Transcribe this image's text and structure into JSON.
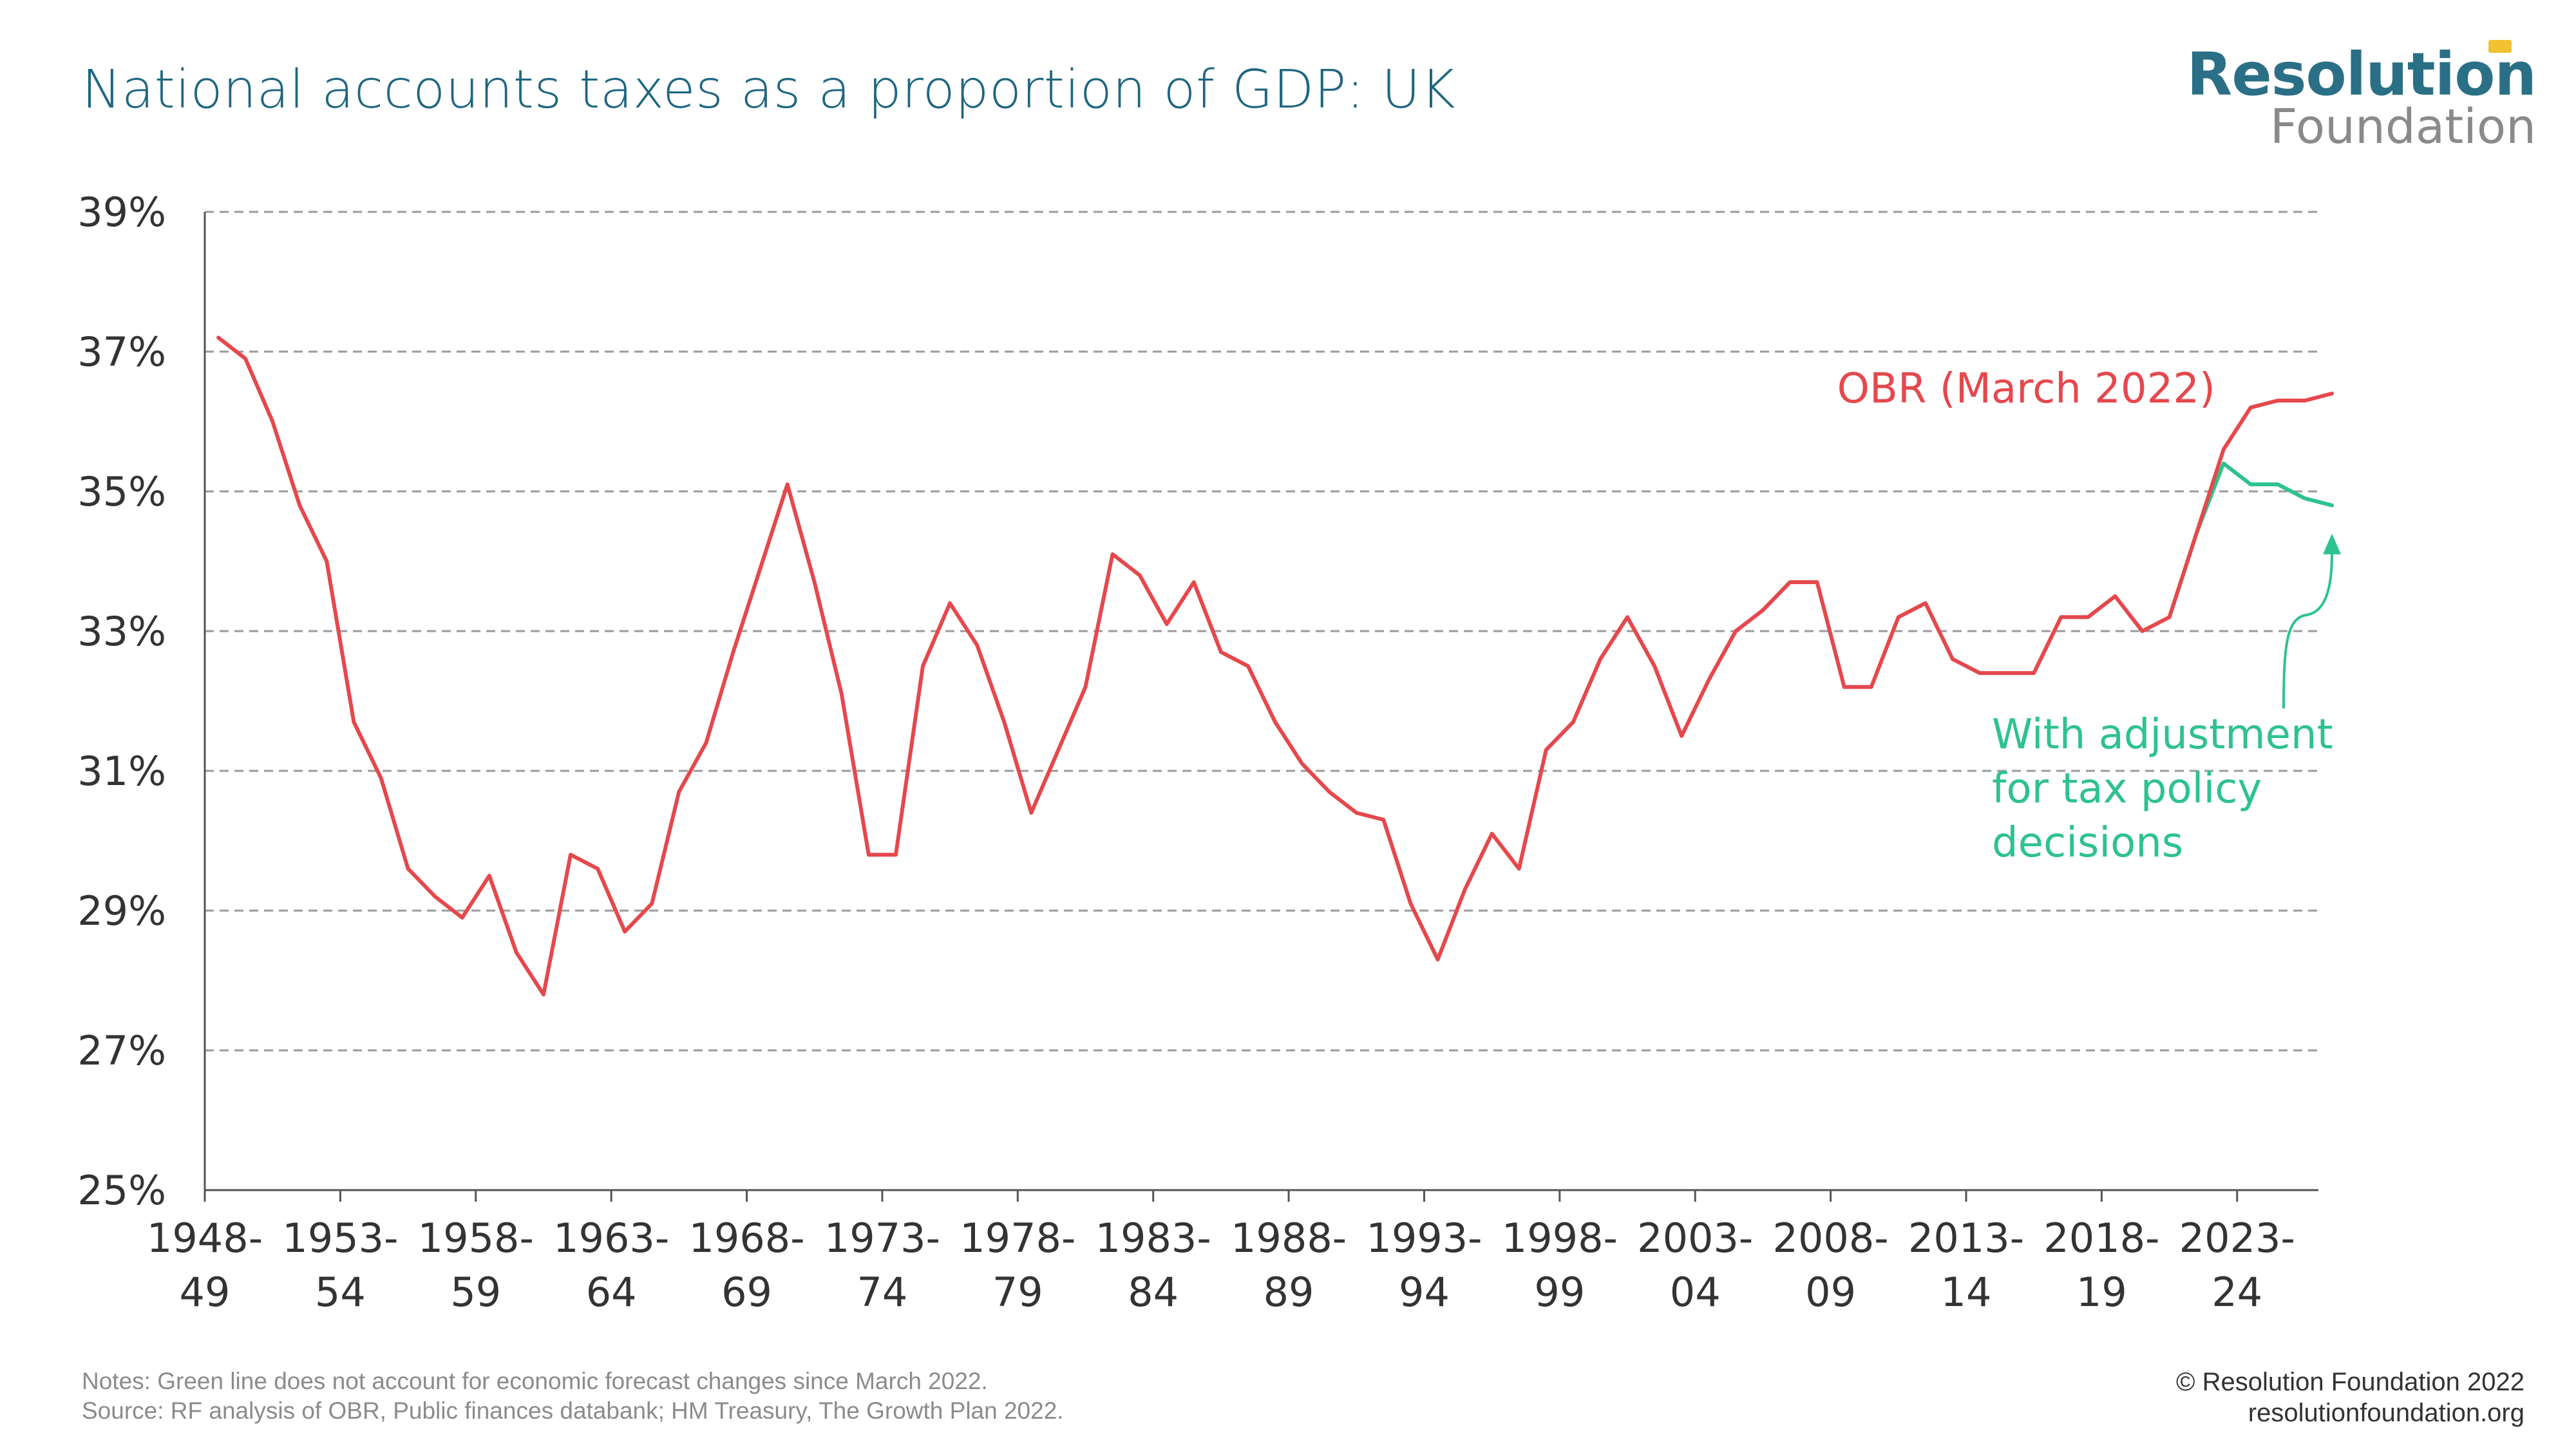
{
  "title": "National accounts taxes as a proportion of GDP: UK",
  "logo": {
    "top": "Resolution",
    "bottom": "Foundation"
  },
  "notes": {
    "line1": "Notes: Green line does not account for economic forecast changes since March 2022.",
    "line2": "Source: RF analysis of OBR, Public finances databank; HM Treasury, The Growth Plan 2022."
  },
  "copyright": {
    "line1": "© Resolution Foundation 2022",
    "line2": "resolutionfoundation.org"
  },
  "colors": {
    "obr": "#e5484d",
    "adjusted": "#2ec28e",
    "title": "#1f6680",
    "grid": "#9a9a9a",
    "axis": "#555555"
  },
  "chart_data": {
    "type": "line",
    "title": "National accounts taxes as a proportion of GDP: UK",
    "xlabel": "",
    "ylabel": "",
    "ylim": [
      25,
      39
    ],
    "yticks": [
      25,
      27,
      29,
      31,
      33,
      35,
      37,
      39
    ],
    "ytick_labels": [
      "25%",
      "27%",
      "29%",
      "31%",
      "33%",
      "35%",
      "37%",
      "39%"
    ],
    "grid": true,
    "x_start": 1948,
    "x_end": 2026,
    "xtick_years": [
      1948,
      1953,
      1958,
      1963,
      1968,
      1973,
      1978,
      1983,
      1988,
      1993,
      1998,
      2003,
      2008,
      2013,
      2018,
      2023
    ],
    "xtick_labels": [
      [
        "1948-",
        "49"
      ],
      [
        "1953-",
        "54"
      ],
      [
        "1958-",
        "59"
      ],
      [
        "1963-",
        "64"
      ],
      [
        "1968-",
        "69"
      ],
      [
        "1973-",
        "74"
      ],
      [
        "1978-",
        "79"
      ],
      [
        "1983-",
        "84"
      ],
      [
        "1988-",
        "89"
      ],
      [
        "1993-",
        "94"
      ],
      [
        "1998-",
        "99"
      ],
      [
        "2003-",
        "04"
      ],
      [
        "2008-",
        "09"
      ],
      [
        "2013-",
        "14"
      ],
      [
        "2018-",
        "19"
      ],
      [
        "2023-",
        "24"
      ]
    ],
    "series": [
      {
        "name": "OBR (March 2022)",
        "color": "#e5484d",
        "start_year": 1948,
        "values": [
          37.2,
          36.9,
          36.0,
          34.8,
          34.0,
          31.7,
          30.9,
          29.6,
          29.2,
          28.9,
          29.5,
          28.4,
          27.8,
          29.8,
          29.6,
          28.7,
          29.1,
          30.7,
          31.4,
          32.7,
          33.9,
          35.1,
          33.7,
          32.1,
          29.8,
          29.8,
          32.5,
          33.4,
          32.8,
          31.7,
          30.4,
          31.3,
          32.2,
          34.1,
          33.8,
          33.1,
          33.7,
          32.7,
          32.5,
          31.7,
          31.1,
          30.7,
          30.4,
          30.3,
          29.1,
          28.3,
          29.3,
          30.1,
          29.6,
          31.3,
          31.7,
          32.6,
          33.2,
          32.5,
          31.5,
          32.3,
          33.0,
          33.3,
          33.7,
          33.7,
          32.2,
          32.2,
          33.2,
          33.4,
          32.6,
          32.4,
          32.4,
          32.4,
          33.2,
          33.2,
          33.5,
          33.0,
          33.2,
          34.4,
          35.6,
          36.2,
          36.3,
          36.3,
          36.4
        ]
      },
      {
        "name": "With adjustment for tax policy decisions",
        "color": "#2ec28e",
        "start_year": 2020,
        "values": [
          33.2,
          34.4,
          35.4,
          35.1,
          35.1,
          34.9,
          34.8
        ]
      }
    ],
    "annotations": {
      "obr_label": "OBR (March 2022)",
      "adjusted_label": [
        "With adjustment",
        "for tax policy",
        "decisions"
      ]
    }
  }
}
